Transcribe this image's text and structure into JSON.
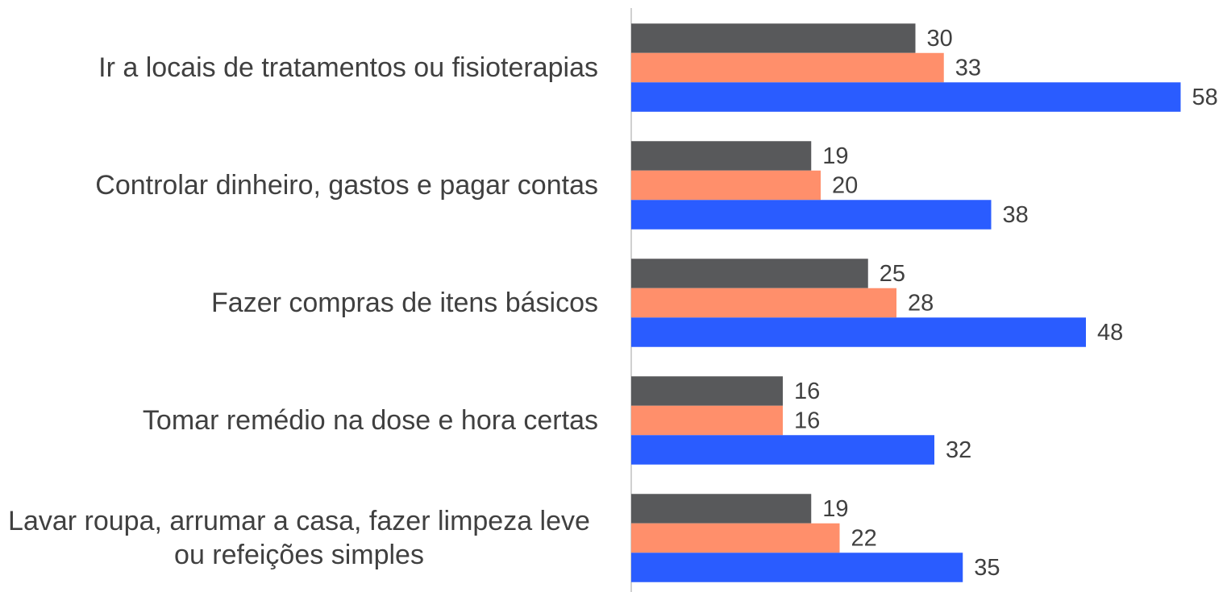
{
  "chart_data": {
    "type": "bar",
    "orientation": "horizontal",
    "categories": [
      "Ir a locais de tratamentos ou fisioterapias",
      "Controlar dinheiro, gastos e pagar contas",
      "Fazer compras de itens básicos",
      "Tomar remédio na dose e hora certas",
      "Lavar roupa, arrumar a casa, fazer limpeza leve ou refeições simples"
    ],
    "series": [
      {
        "color": "#58595b",
        "values": [
          30,
          19,
          25,
          16,
          19
        ]
      },
      {
        "color": "#ff8f6b",
        "values": [
          33,
          20,
          28,
          16,
          22
        ]
      },
      {
        "color": "#2a5cff",
        "values": [
          58,
          38,
          48,
          32,
          35
        ]
      }
    ],
    "xlim": [
      0,
      60
    ]
  }
}
